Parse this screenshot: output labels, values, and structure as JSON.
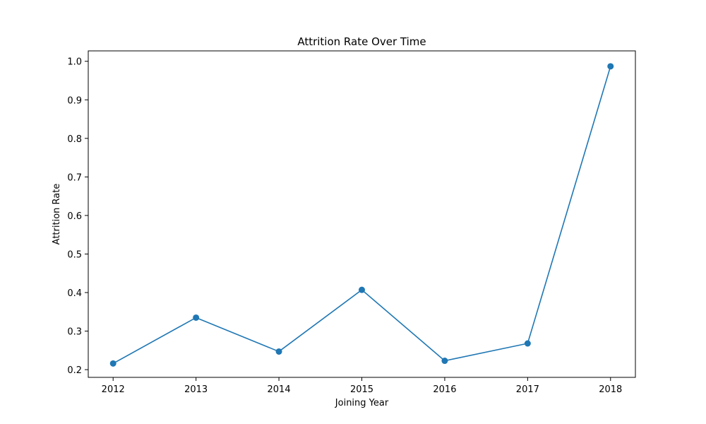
{
  "chart_data": {
    "type": "line",
    "title": "Attrition Rate Over Time",
    "xlabel": "Joining Year",
    "ylabel": "Attrition Rate",
    "x": [
      2012,
      2013,
      2014,
      2015,
      2016,
      2017,
      2018
    ],
    "xticks": [
      "2012",
      "2013",
      "2014",
      "2015",
      "2016",
      "2017",
      "2018"
    ],
    "yticks": [
      "0.2",
      "0.3",
      "0.4",
      "0.5",
      "0.6",
      "0.7",
      "0.8",
      "0.9",
      "1.0"
    ],
    "ylim": [
      0.18,
      1.027
    ],
    "xlim": [
      2011.7,
      2018.3
    ],
    "grid": false,
    "series": [
      {
        "values": [
          0.216,
          0.335,
          0.247,
          0.407,
          0.223,
          0.268,
          0.987
        ],
        "color": "#1f77b4",
        "marker": "circle"
      }
    ]
  }
}
